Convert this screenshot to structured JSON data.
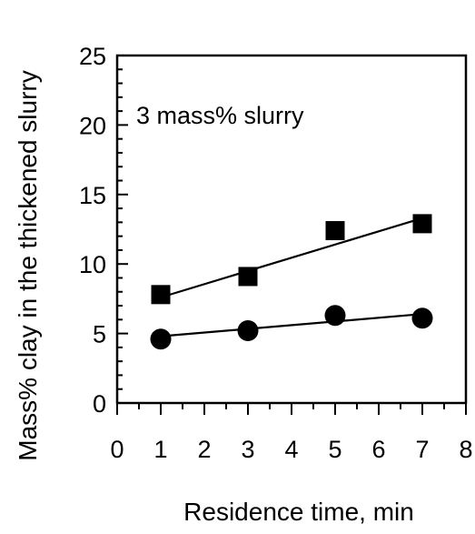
{
  "chart_data": {
    "type": "scatter",
    "title": "",
    "annotation": "3 mass% slurry",
    "xlabel": "Residence time, min",
    "ylabel": "Mass% clay in the thickened slurry",
    "xlim": [
      0,
      8
    ],
    "ylim": [
      0,
      25
    ],
    "x_ticks": [
      0,
      1,
      2,
      3,
      4,
      5,
      6,
      7,
      8
    ],
    "y_ticks": [
      0,
      5,
      10,
      15,
      20,
      25
    ],
    "grid": false,
    "legend": "none",
    "series": [
      {
        "marker": "square",
        "x": [
          1,
          3,
          5,
          7
        ],
        "y": [
          7.8,
          9.1,
          12.4,
          12.9
        ],
        "fit_line": {
          "x": [
            1,
            7
          ],
          "y": [
            7.6,
            13.3
          ]
        }
      },
      {
        "marker": "circle",
        "x": [
          1,
          3,
          5,
          7
        ],
        "y": [
          4.6,
          5.2,
          6.3,
          6.1
        ],
        "fit_line": {
          "x": [
            1,
            7
          ],
          "y": [
            4.8,
            6.4
          ]
        }
      }
    ],
    "colors": {
      "marker": "#000000",
      "line": "#000000"
    }
  }
}
